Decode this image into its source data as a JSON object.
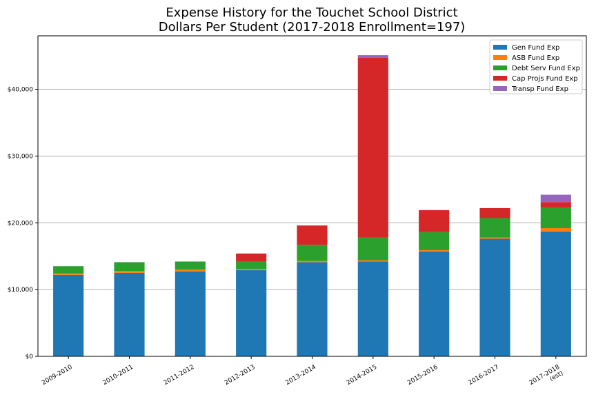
{
  "chart_data": {
    "type": "bar",
    "stacked": true,
    "title": [
      "Expense History for the Touchet School District",
      "Dollars Per Student (2017-2018 Enrollment=197)"
    ],
    "xlabel": "",
    "ylabel": "",
    "categories": [
      "2009-2010",
      "2010-2011",
      "2011-2012",
      "2012-2013",
      "2013-2014",
      "2014-2015",
      "2015-2016",
      "2016-2017",
      "2017-2018\n(est)"
    ],
    "ylim": [
      0,
      48000
    ],
    "yticks": [
      0,
      10000,
      20000,
      30000,
      40000
    ],
    "ytick_labels": [
      "$0",
      "$10,000",
      "$20,000",
      "$30,000",
      "$40,000"
    ],
    "grid": "y",
    "legend_position": "top-right",
    "series": [
      {
        "name": "Gen Fund Exp",
        "color": "#1f77b4",
        "values": [
          12200,
          12500,
          12700,
          12900,
          14100,
          14200,
          15700,
          17600,
          18700
        ]
      },
      {
        "name": "ASB Fund Exp",
        "color": "#ff7f0e",
        "values": [
          200,
          300,
          300,
          200,
          200,
          200,
          200,
          200,
          500
        ]
      },
      {
        "name": "Debt Serv Fund Exp",
        "color": "#2ca02c",
        "values": [
          1100,
          1300,
          1200,
          1100,
          2400,
          3400,
          2700,
          2900,
          3100
        ]
      },
      {
        "name": "Cap Projs Fund Exp",
        "color": "#d62728",
        "values": [
          0,
          0,
          0,
          1200,
          2900,
          26900,
          3300,
          1500,
          800
        ]
      },
      {
        "name": "Transp Fund Exp",
        "color": "#9467bd",
        "values": [
          0,
          0,
          0,
          0,
          0,
          400,
          0,
          0,
          1100
        ]
      }
    ]
  }
}
